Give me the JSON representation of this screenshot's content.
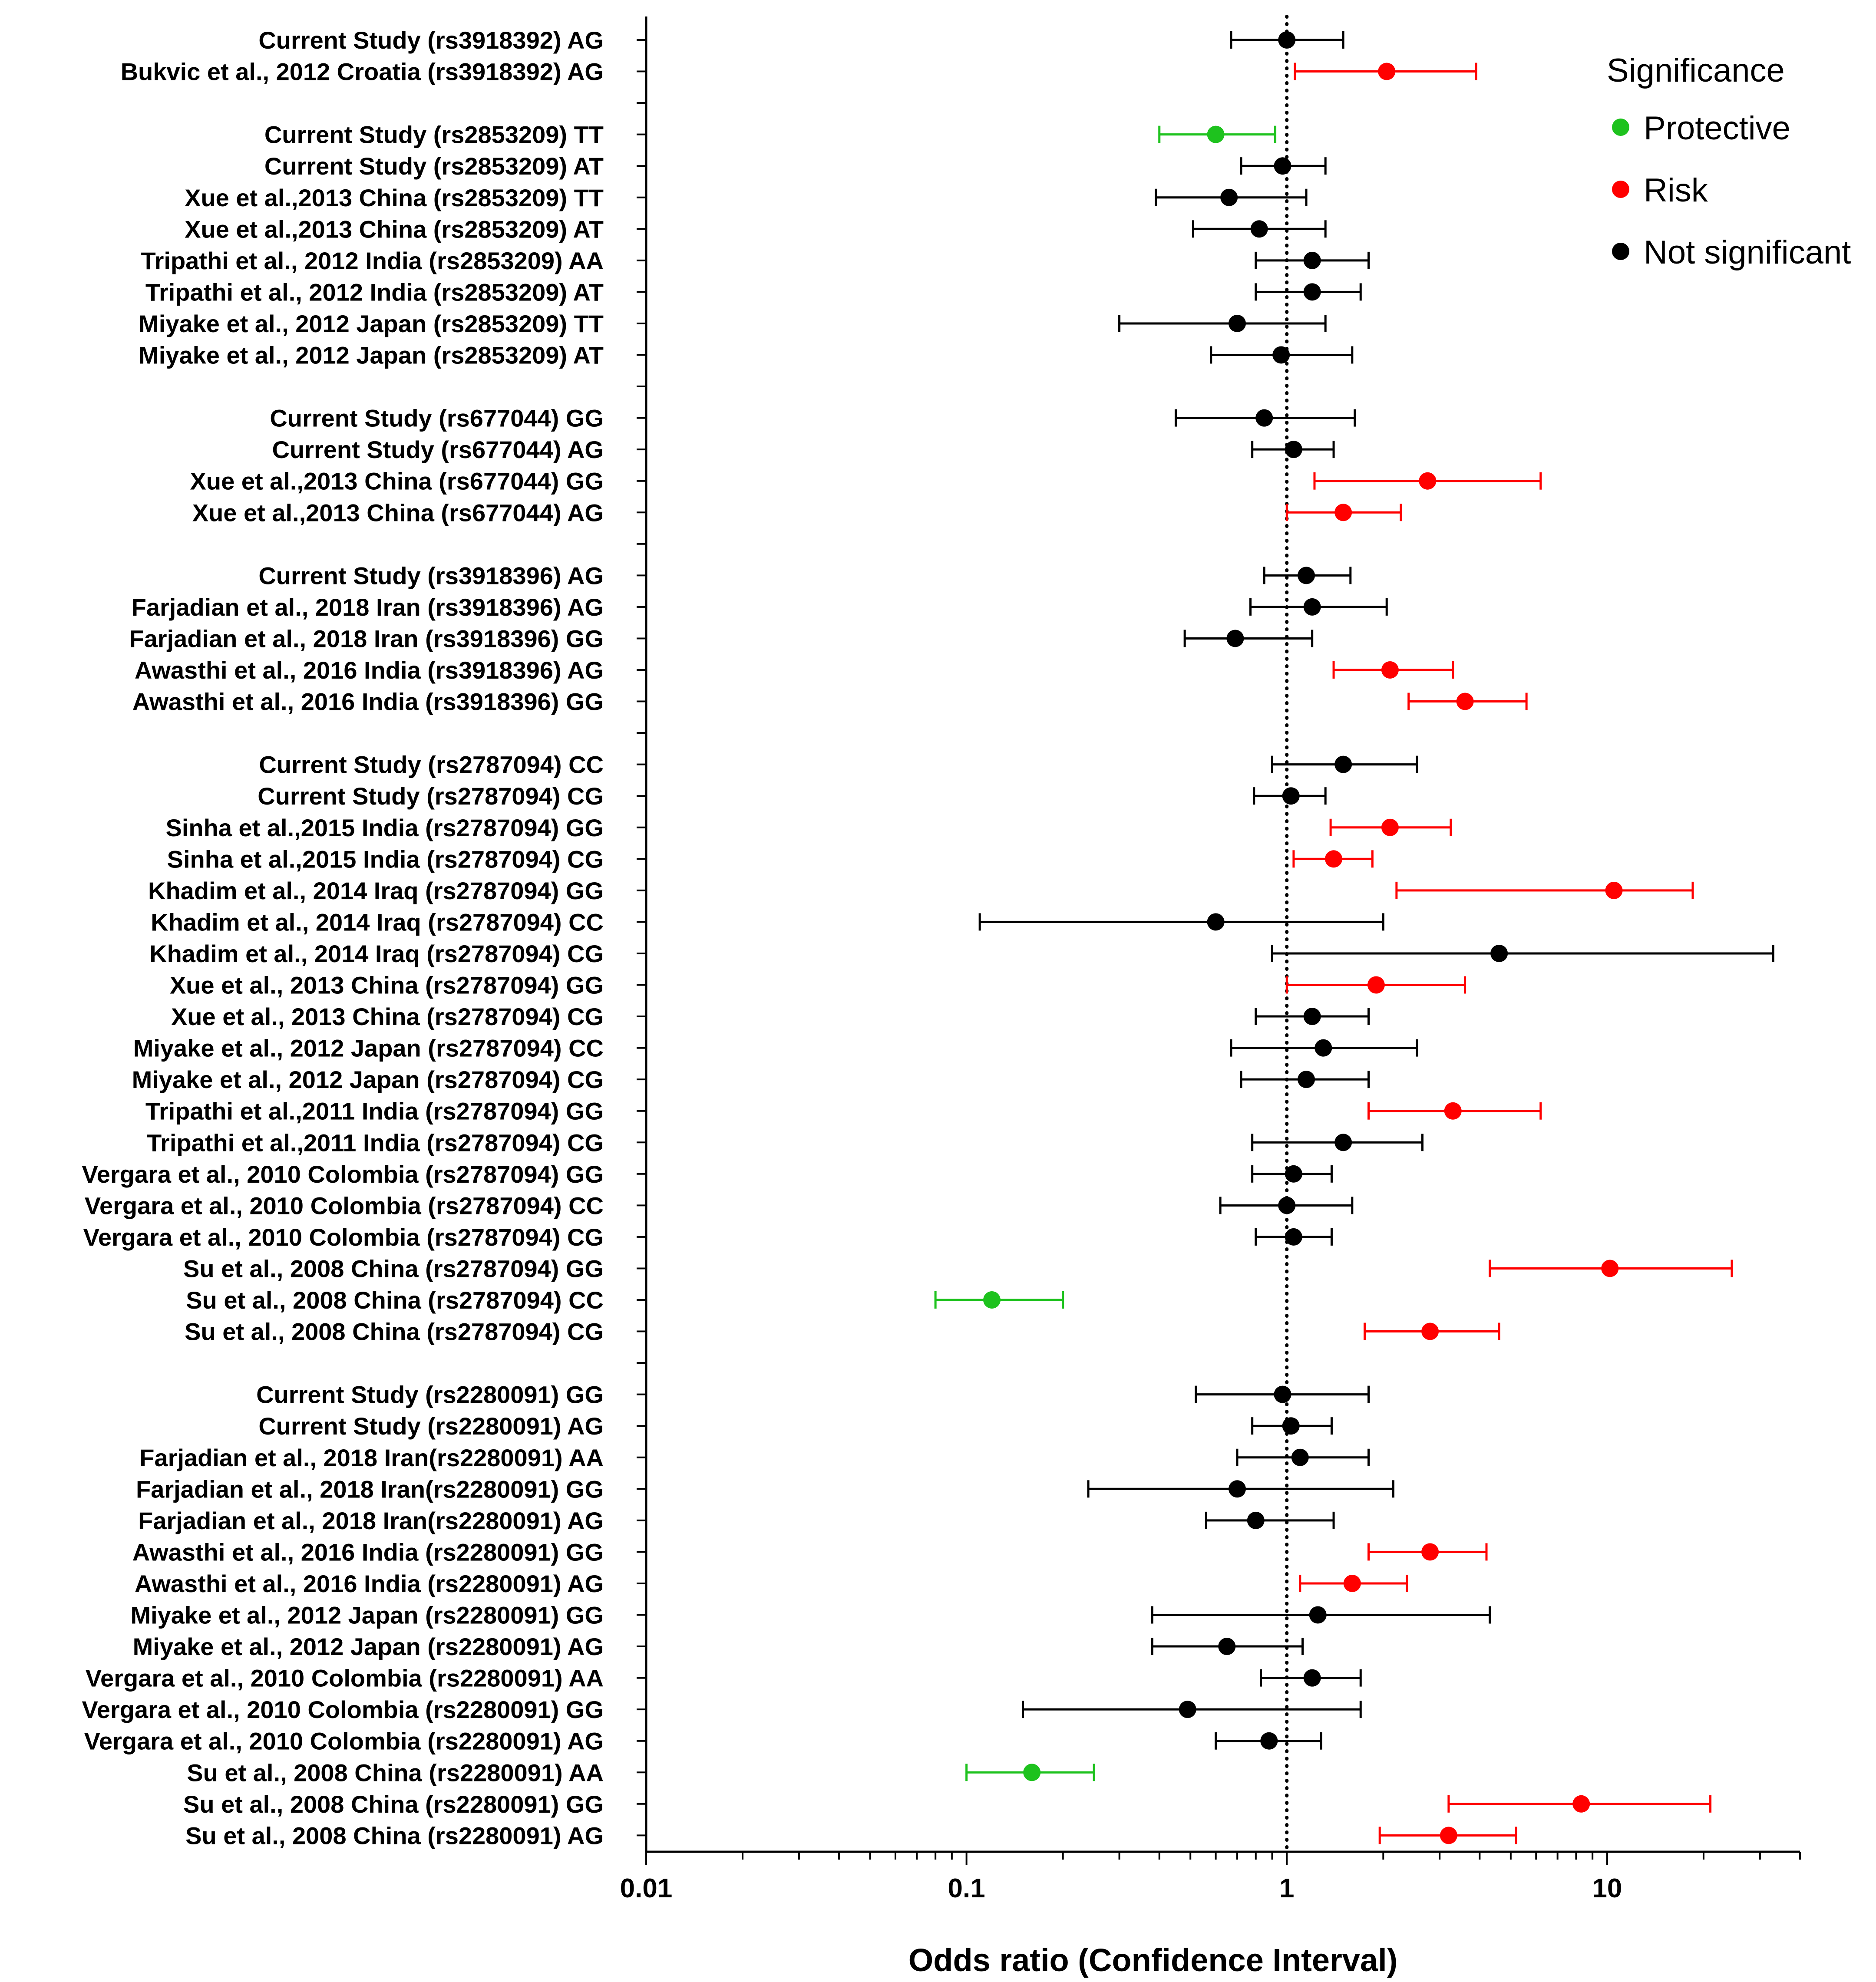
{
  "chart_data": {
    "type": "forest",
    "xlabel": "Odds ratio (Confidence Interval)",
    "xscale": "log",
    "xlim": [
      0.01,
      40
    ],
    "xticks": [
      "0.01",
      "0.1",
      "1",
      "10"
    ],
    "reference_line": 1,
    "legend": {
      "title": "Significance",
      "placement": "top-right",
      "entries": [
        {
          "key": "Protective",
          "label": "Protective",
          "color": "#1ec21e"
        },
        {
          "key": "Risk",
          "label": "Risk",
          "color": "#ff0000"
        },
        {
          "key": "NS",
          "label": "Not significant",
          "color": "#000000"
        }
      ]
    },
    "rows": [
      {
        "label": "Current Study (rs3918392) AG",
        "or": 1.0,
        "lo": 0.67,
        "hi": 1.5,
        "sig": "NS"
      },
      {
        "label": "Bukvic et al., 2012 Croatia (rs3918392) AG",
        "or": 2.05,
        "lo": 1.06,
        "hi": 3.9,
        "sig": "Risk"
      },
      {
        "label": "",
        "or": null
      },
      {
        "label": "Current Study (rs2853209) TT",
        "or": 0.6,
        "lo": 0.4,
        "hi": 0.92,
        "sig": "Protective"
      },
      {
        "label": "Current Study (rs2853209) AT",
        "or": 0.97,
        "lo": 0.72,
        "hi": 1.32,
        "sig": "NS"
      },
      {
        "label": "Xue et al.,2013 China (rs2853209) TT",
        "or": 0.66,
        "lo": 0.39,
        "hi": 1.15,
        "sig": "NS"
      },
      {
        "label": "Xue et al.,2013 China (rs2853209) AT",
        "or": 0.82,
        "lo": 0.51,
        "hi": 1.32,
        "sig": "NS"
      },
      {
        "label": "Tripathi et al., 2012 India (rs2853209) AA",
        "or": 1.2,
        "lo": 0.8,
        "hi": 1.8,
        "sig": "NS"
      },
      {
        "label": "Tripathi et al., 2012 India (rs2853209) AT",
        "or": 1.2,
        "lo": 0.8,
        "hi": 1.7,
        "sig": "NS"
      },
      {
        "label": "Miyake et al., 2012 Japan (rs2853209) TT",
        "or": 0.7,
        "lo": 0.3,
        "hi": 1.32,
        "sig": "NS"
      },
      {
        "label": "Miyake et al., 2012 Japan (rs2853209) AT",
        "or": 0.96,
        "lo": 0.58,
        "hi": 1.6,
        "sig": "NS"
      },
      {
        "label": "",
        "or": null
      },
      {
        "label": "Current Study (rs677044) GG",
        "or": 0.85,
        "lo": 0.45,
        "hi": 1.63,
        "sig": "NS"
      },
      {
        "label": "Current Study (rs677044) AG",
        "or": 1.05,
        "lo": 0.78,
        "hi": 1.4,
        "sig": "NS"
      },
      {
        "label": "Xue et al.,2013 China (rs677044) GG",
        "or": 2.75,
        "lo": 1.22,
        "hi": 6.2,
        "sig": "Risk"
      },
      {
        "label": "Xue et al.,2013 China (rs677044) AG",
        "or": 1.5,
        "lo": 1.0,
        "hi": 2.27,
        "sig": "Risk"
      },
      {
        "label": "",
        "or": null
      },
      {
        "label": "Current Study (rs3918396) AG",
        "or": 1.15,
        "lo": 0.85,
        "hi": 1.58,
        "sig": "NS"
      },
      {
        "label": "Farjadian et al., 2018 Iran (rs3918396) AG",
        "or": 1.2,
        "lo": 0.77,
        "hi": 2.05,
        "sig": "NS"
      },
      {
        "label": "Farjadian et al., 2018 Iran (rs3918396) GG",
        "or": 0.69,
        "lo": 0.48,
        "hi": 1.2,
        "sig": "NS"
      },
      {
        "label": "Awasthi et al., 2016 India (rs3918396) AG",
        "or": 2.1,
        "lo": 1.4,
        "hi": 3.3,
        "sig": "Risk"
      },
      {
        "label": "Awasthi et al., 2016 India (rs3918396) GG",
        "or": 3.6,
        "lo": 2.4,
        "hi": 5.6,
        "sig": "Risk"
      },
      {
        "label": "",
        "or": null
      },
      {
        "label": "Current Study (rs2787094) CC",
        "or": 1.5,
        "lo": 0.9,
        "hi": 2.55,
        "sig": "NS"
      },
      {
        "label": "Current Study (rs2787094) CG",
        "or": 1.03,
        "lo": 0.79,
        "hi": 1.32,
        "sig": "NS"
      },
      {
        "label": "Sinha et al.,2015 India (rs2787094) GG",
        "or": 2.1,
        "lo": 1.37,
        "hi": 3.25,
        "sig": "Risk"
      },
      {
        "label": "Sinha et al.,2015 India (rs2787094) CG",
        "or": 1.4,
        "lo": 1.05,
        "hi": 1.85,
        "sig": "Risk"
      },
      {
        "label": "Khadim et al., 2014 Iraq (rs2787094) GG",
        "or": 10.5,
        "lo": 2.2,
        "hi": 18.5,
        "sig": "Risk"
      },
      {
        "label": "Khadim et al., 2014 Iraq (rs2787094) CC",
        "or": 0.6,
        "lo": 0.11,
        "hi": 2.0,
        "sig": "NS"
      },
      {
        "label": "Khadim et al., 2014 Iraq (rs2787094) CG",
        "or": 4.6,
        "lo": 0.9,
        "hi": 33.0,
        "sig": "NS"
      },
      {
        "label": "Xue et al., 2013 China (rs2787094) GG",
        "or": 1.9,
        "lo": 1.0,
        "hi": 3.6,
        "sig": "Risk"
      },
      {
        "label": "Xue et al., 2013 China (rs2787094) CG",
        "or": 1.2,
        "lo": 0.8,
        "hi": 1.8,
        "sig": "NS"
      },
      {
        "label": "Miyake et al., 2012 Japan (rs2787094) CC",
        "or": 1.3,
        "lo": 0.67,
        "hi": 2.55,
        "sig": "NS"
      },
      {
        "label": "Miyake et al., 2012 Japan (rs2787094) CG",
        "or": 1.15,
        "lo": 0.72,
        "hi": 1.8,
        "sig": "NS"
      },
      {
        "label": "Tripathi et al.,2011 India (rs2787094) GG",
        "or": 3.3,
        "lo": 1.8,
        "hi": 6.2,
        "sig": "Risk"
      },
      {
        "label": "Tripathi et al.,2011 India (rs2787094) CG",
        "or": 1.5,
        "lo": 0.78,
        "hi": 2.65,
        "sig": "NS"
      },
      {
        "label": "Vergara et al., 2010 Colombia (rs2787094) GG",
        "or": 1.05,
        "lo": 0.78,
        "hi": 1.38,
        "sig": "NS"
      },
      {
        "label": "Vergara et al., 2010 Colombia (rs2787094) CC",
        "or": 1.0,
        "lo": 0.62,
        "hi": 1.6,
        "sig": "NS"
      },
      {
        "label": "Vergara et al., 2010 Colombia (rs2787094) CG",
        "or": 1.05,
        "lo": 0.8,
        "hi": 1.38,
        "sig": "NS"
      },
      {
        "label": "Su et al., 2008 China (rs2787094) GG",
        "or": 10.2,
        "lo": 4.3,
        "hi": 24.5,
        "sig": "Risk"
      },
      {
        "label": "Su et al., 2008 China (rs2787094) CC",
        "or": 0.12,
        "lo": 0.08,
        "hi": 0.2,
        "sig": "Protective"
      },
      {
        "label": "Su et al., 2008 China (rs2787094) CG",
        "or": 2.8,
        "lo": 1.75,
        "hi": 4.6,
        "sig": "Risk"
      },
      {
        "label": "",
        "or": null
      },
      {
        "label": "Current Study (rs2280091) GG",
        "or": 0.97,
        "lo": 0.52,
        "hi": 1.8,
        "sig": "NS"
      },
      {
        "label": "Current Study (rs2280091) AG",
        "or": 1.03,
        "lo": 0.78,
        "hi": 1.38,
        "sig": "NS"
      },
      {
        "label": "Farjadian et al., 2018 Iran(rs2280091) AA",
        "or": 1.1,
        "lo": 0.7,
        "hi": 1.8,
        "sig": "NS"
      },
      {
        "label": "Farjadian et al., 2018 Iran(rs2280091) GG",
        "or": 0.7,
        "lo": 0.24,
        "hi": 2.15,
        "sig": "NS"
      },
      {
        "label": "Farjadian et al., 2018 Iran(rs2280091) AG",
        "or": 0.8,
        "lo": 0.56,
        "hi": 1.4,
        "sig": "NS"
      },
      {
        "label": "Awasthi et al., 2016 India  (rs2280091) GG",
        "or": 2.8,
        "lo": 1.8,
        "hi": 4.2,
        "sig": "Risk"
      },
      {
        "label": "Awasthi et al., 2016 India  (rs2280091) AG",
        "or": 1.6,
        "lo": 1.1,
        "hi": 2.37,
        "sig": "Risk"
      },
      {
        "label": "Miyake et al., 2012 Japan (rs2280091) GG",
        "or": 1.25,
        "lo": 0.38,
        "hi": 4.3,
        "sig": "NS"
      },
      {
        "label": "Miyake et al., 2012 Japan (rs2280091) AG",
        "or": 0.65,
        "lo": 0.38,
        "hi": 1.12,
        "sig": "NS"
      },
      {
        "label": "Vergara et al., 2010 Colombia (rs2280091) AA",
        "or": 1.2,
        "lo": 0.83,
        "hi": 1.7,
        "sig": "NS"
      },
      {
        "label": "Vergara et al., 2010 Colombia (rs2280091) GG",
        "or": 0.49,
        "lo": 0.15,
        "hi": 1.7,
        "sig": "NS"
      },
      {
        "label": "Vergara et al., 2010 Colombia (rs2280091) AG",
        "or": 0.88,
        "lo": 0.6,
        "hi": 1.28,
        "sig": "NS"
      },
      {
        "label": "Su et al., 2008 China (rs2280091) AA",
        "or": 0.16,
        "lo": 0.1,
        "hi": 0.25,
        "sig": "Protective"
      },
      {
        "label": "Su et al., 2008 China (rs2280091) GG",
        "or": 8.3,
        "lo": 3.2,
        "hi": 21.0,
        "sig": "Risk"
      },
      {
        "label": "Su et al., 2008 China (rs2280091) AG",
        "or": 3.2,
        "lo": 1.95,
        "hi": 5.2,
        "sig": "Risk"
      }
    ]
  }
}
